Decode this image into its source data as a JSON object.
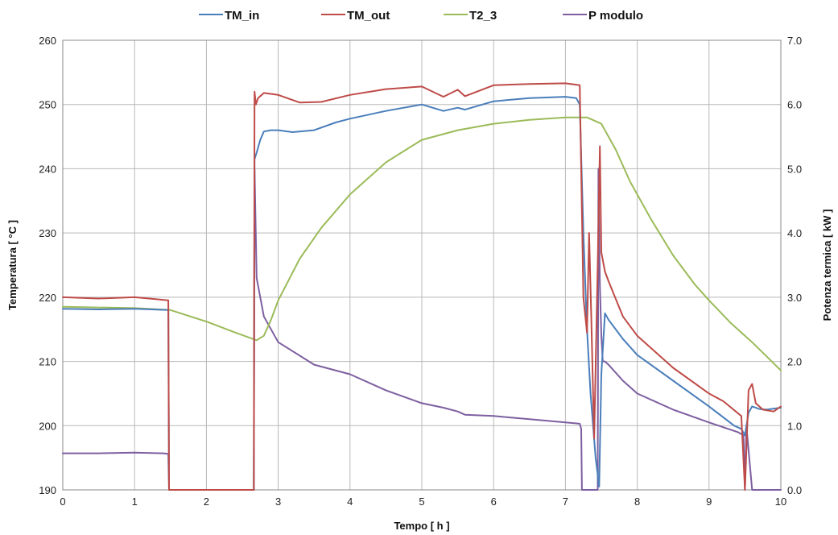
{
  "chart_data": {
    "type": "line",
    "title": "",
    "xlabel": "Tempo  [ h ]",
    "ylabel": "Temperatura  [ °C ]",
    "y2label": "Potenza termica  [ kW ]",
    "xlim": [
      0,
      10
    ],
    "ylim": [
      190,
      260
    ],
    "y2lim": [
      0,
      7
    ],
    "xticks": [
      "0",
      "1",
      "2",
      "3",
      "4",
      "5",
      "6",
      "7",
      "8",
      "9",
      "10"
    ],
    "yticks": [
      "190",
      "200",
      "210",
      "220",
      "230",
      "240",
      "250",
      "260"
    ],
    "y2ticks": [
      "0.0",
      "1.0",
      "2.0",
      "3.0",
      "4.0",
      "5.0",
      "6.0",
      "7.0"
    ],
    "grid": true,
    "legend_position": "top",
    "series": [
      {
        "name": "TM_in",
        "color": "#4a7ebb",
        "axis": "left",
        "x": [
          0,
          0.5,
          1.0,
          1.47,
          1.48,
          2.66,
          2.67,
          2.7,
          2.75,
          2.8,
          2.9,
          3.0,
          3.2,
          3.5,
          3.8,
          4.0,
          4.5,
          5.0,
          5.3,
          5.5,
          5.6,
          6.0,
          6.5,
          7.0,
          7.15,
          7.2,
          7.25,
          7.3,
          7.35,
          7.42,
          7.47,
          7.5,
          7.55,
          7.6,
          7.8,
          8.0,
          8.5,
          9.0,
          9.35,
          9.45,
          9.5,
          9.55,
          9.6,
          9.7,
          9.8,
          10.0
        ],
        "y": [
          218.2,
          218.1,
          218.2,
          218.0,
          190,
          190,
          241.5,
          242.5,
          244.5,
          245.8,
          246.0,
          246.0,
          245.7,
          246.0,
          247.2,
          247.8,
          249.0,
          250.0,
          249.0,
          249.5,
          249.2,
          250.5,
          251.0,
          251.2,
          251.0,
          250.0,
          230.0,
          215.0,
          205.0,
          195.0,
          190.5,
          208.0,
          217.5,
          216.5,
          213.5,
          211.0,
          207.0,
          203.0,
          200.0,
          199.5,
          198.5,
          202.0,
          203.0,
          202.6,
          202.5,
          202.8
        ]
      },
      {
        "name": "TM_out",
        "color": "#be4b48",
        "axis": "left",
        "x": [
          0,
          0.5,
          1.0,
          1.2,
          1.47,
          1.48,
          2.66,
          2.67,
          2.69,
          2.72,
          2.8,
          3.0,
          3.3,
          3.6,
          4.0,
          4.5,
          5.0,
          5.3,
          5.5,
          5.6,
          6.0,
          6.5,
          7.0,
          7.2,
          7.25,
          7.3,
          7.33,
          7.36,
          7.4,
          7.45,
          7.48,
          7.5,
          7.55,
          7.6,
          7.8,
          8.0,
          8.5,
          9.0,
          9.2,
          9.45,
          9.5,
          9.55,
          9.6,
          9.65,
          9.75,
          9.9,
          10.0
        ],
        "y": [
          220.0,
          219.8,
          220.0,
          219.8,
          219.5,
          190,
          190,
          252.0,
          250.0,
          251.0,
          251.8,
          251.5,
          250.3,
          250.4,
          251.5,
          252.4,
          252.8,
          251.2,
          252.3,
          251.3,
          253.0,
          253.2,
          253.3,
          253.0,
          220.0,
          214.5,
          230.0,
          217.0,
          198.0,
          225.0,
          243.5,
          227.0,
          224.0,
          222.5,
          217.0,
          214.0,
          209.0,
          205.0,
          203.8,
          201.5,
          190,
          205.5,
          206.5,
          203.5,
          202.5,
          202.2,
          203.0
        ]
      },
      {
        "name": "T2_3",
        "color": "#9bbb59",
        "axis": "left",
        "x": [
          0,
          0.5,
          1.0,
          1.5,
          2.0,
          2.4,
          2.7,
          2.8,
          2.9,
          3.0,
          3.3,
          3.6,
          4.0,
          4.5,
          5.0,
          5.5,
          6.0,
          6.5,
          7.0,
          7.3,
          7.5,
          7.7,
          7.9,
          8.2,
          8.5,
          8.8,
          9.0,
          9.3,
          9.6,
          10.0
        ],
        "y": [
          218.5,
          218.4,
          218.3,
          218.0,
          216.2,
          214.5,
          213.3,
          214.0,
          216.5,
          219.5,
          226.0,
          230.8,
          236.0,
          241.0,
          244.5,
          246.0,
          247.0,
          247.6,
          248.0,
          248.0,
          247.0,
          243.0,
          238.0,
          232.0,
          226.5,
          222.0,
          219.5,
          216.0,
          213.0,
          208.6
        ]
      },
      {
        "name": "P modulo",
        "color": "#7d5fa0",
        "axis": "right",
        "x": [
          0,
          0.5,
          1.0,
          1.4,
          1.47,
          1.48,
          2.66,
          2.67,
          2.7,
          2.75,
          2.8,
          3.0,
          3.5,
          4.0,
          4.5,
          5.0,
          5.3,
          5.5,
          5.6,
          6.0,
          6.5,
          7.0,
          7.2,
          7.22,
          7.23,
          7.45,
          7.46,
          7.48,
          7.5,
          7.52,
          7.55,
          7.6,
          7.8,
          8.0,
          8.5,
          9.0,
          9.4,
          9.48,
          9.5,
          9.52,
          9.6,
          10.0
        ],
        "y": [
          0.57,
          0.57,
          0.58,
          0.57,
          0.56,
          0,
          0,
          5.0,
          3.3,
          3.0,
          2.7,
          2.3,
          1.95,
          1.8,
          1.55,
          1.35,
          1.28,
          1.22,
          1.17,
          1.15,
          1.1,
          1.05,
          1.03,
          0.95,
          0,
          0,
          5.0,
          3.2,
          2.4,
          2.0,
          2.0,
          1.95,
          1.7,
          1.5,
          1.25,
          1.05,
          0.9,
          0.85,
          0,
          1.0,
          0,
          0
        ]
      }
    ]
  }
}
